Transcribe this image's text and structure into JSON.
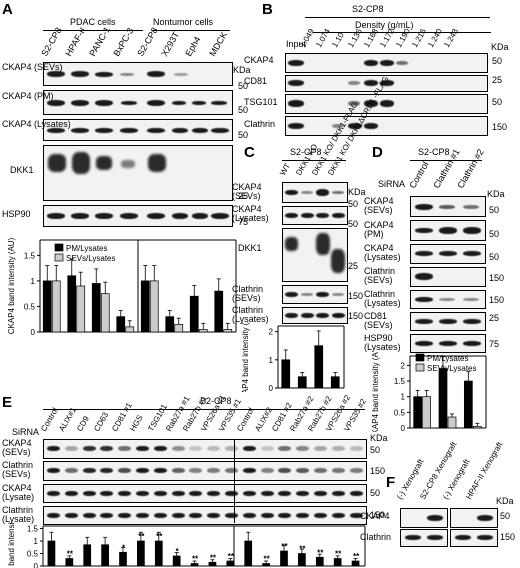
{
  "panels": {
    "A": "A",
    "B": "B",
    "C": "C",
    "D": "D",
    "E": "E",
    "F": "F"
  },
  "a": {
    "group_pdac": "PDAC cells",
    "group_nontumor": "Nontumor cells",
    "lanes": [
      "S2-CP8",
      "HPAF-II",
      "PANC-1",
      "BxPC-3",
      "S2-CP8",
      "X293T",
      "Eph4",
      "MDCK"
    ],
    "rows": [
      "CKAP4 (SEVs)",
      "CKAP4 (PM)",
      "CKAP4 (Lysates)",
      "DKK1",
      "HSP90"
    ],
    "kda": "KDa",
    "mw": [
      "50",
      "50",
      "50",
      "25",
      "75"
    ],
    "ylabel": "CKAP4 band intensity (AU)",
    "yticks": [
      "0",
      "0.5",
      "1",
      "1.5"
    ],
    "legend": [
      "PM/Lysates",
      "SEVs/Lysates"
    ]
  },
  "b": {
    "title": "S2-CP8",
    "density": "Density (g/mL)",
    "input": "Input",
    "lanes": [
      "1.049",
      "1.074",
      "1.10",
      "1.136",
      "1.168",
      "1.172",
      "1.190",
      "1.216",
      "1.240",
      "1.243"
    ],
    "rows": [
      "CKAP4",
      "CD81",
      "TSG101",
      "Clathrin"
    ],
    "kda": "KDa",
    "mw": [
      "50",
      "25",
      "50",
      "150"
    ]
  },
  "c": {
    "title": "S2-CP8",
    "lanes": [
      "WT",
      "DKK1 KO",
      "DKK1 KO/ DKK1-FLAG",
      "DKK1 KO/ DKK1ΔCRD1 -FLAG"
    ],
    "rows": [
      "CKAP4 (SEVs)",
      "CKAP4 (Lysates)",
      "DKK1",
      "Clathrin (SEVs)",
      "Clathrin (Lysates)"
    ],
    "kda": "KDa",
    "mw": [
      "50",
      "50",
      "25",
      "150",
      "150"
    ],
    "ylabel": "CKAP4 band intensity (AU)",
    "yticks": [
      "0",
      "1",
      "2"
    ]
  },
  "d": {
    "title": "S2-CP8",
    "sirna": "SiRNA",
    "lanes": [
      "Control",
      "Clathrin #1",
      "Clathrin #2"
    ],
    "rows": [
      "CKAP4 (SEVs)",
      "CKAP4 (PM)",
      "CKAP4 (Lysates)",
      "Clathrin (SEVs)",
      "Clathrin (Lysates)",
      "CD81 (SEVs)",
      "HSP90 (Lysates)"
    ],
    "kda": "KDa",
    "mw": [
      "50",
      "50",
      "50",
      "150",
      "150",
      "25",
      "75"
    ],
    "ylabel": "CKAP4 band intensity (AU)",
    "yticks": [
      "0",
      "0.5",
      "1",
      "1.5",
      "2"
    ],
    "legend": [
      "PM/Lysates",
      "SEVs/Lysates"
    ]
  },
  "e": {
    "title": "S2-CP8",
    "sirna": "SiRNA",
    "lanes": [
      "Control",
      "ALIX#1",
      "CD9",
      "CD63",
      "CD81 #1",
      "HGS",
      "TSG101",
      "Rab27a #1",
      "Rab27b #1",
      "VPS26a #1",
      "VPS35 #1",
      "Control",
      "ALIX#2",
      "CD81 #2",
      "Rab27a #2",
      "Rab27b #2",
      "VPS26a #2",
      "VPS35 #2"
    ],
    "rows": [
      "CKAP4 (SEVs)",
      "Clathrin (SEVs)",
      "CKAP4 (Lysate)",
      "Clathrin (Lysate)"
    ],
    "kda": "KDa",
    "mw": [
      "50",
      "150",
      "50",
      "150"
    ],
    "ylabel": "CKAP4 band intensity (AU)",
    "yticks": [
      "0",
      "0.5",
      "1",
      "1.5"
    ],
    "sig": [
      "**",
      "*",
      "*",
      "**",
      "**",
      "**",
      "**",
      "**",
      "**",
      "**",
      "**",
      "**",
      "**",
      "**"
    ]
  },
  "f": {
    "lanes": [
      "(-) Xenograft",
      "S2-CP8 Xenograft",
      "(-) Xenograft",
      "HPAF-II Xenograft"
    ],
    "rows": [
      "CKAP4",
      "Clathrin"
    ],
    "kda": "KDa",
    "mw": [
      "50",
      "150"
    ]
  },
  "chart_data": [
    {
      "type": "bar",
      "panel": "A",
      "categories": [
        "S2-CP8",
        "HPAF-II",
        "PANC-1",
        "BxPC-3",
        "S2-CP8",
        "X293T",
        "Eph4",
        "MDCK"
      ],
      "series": [
        {
          "name": "PM/Lysates",
          "values": [
            1.0,
            1.1,
            0.95,
            0.3,
            1.0,
            0.3,
            0.7,
            0.8
          ]
        },
        {
          "name": "SEVs/Lysates",
          "values": [
            1.0,
            0.9,
            0.75,
            0.1,
            1.0,
            0.15,
            0.05,
            0.05
          ]
        }
      ],
      "ylabel": "CKAP4 band intensity (AU)",
      "ylim": [
        0,
        1.8
      ]
    },
    {
      "type": "bar",
      "panel": "C",
      "categories": [
        "WT",
        "DKK1 KO",
        "DKK1 KO/ DKK1-FLAG",
        "DKK1 KO/ DKK1ΔCRD1 -FLAG"
      ],
      "values": [
        1.0,
        0.4,
        1.5,
        0.4
      ],
      "ylabel": "CKAP4 band intensity (AU)",
      "ylim": [
        0,
        2.2
      ]
    },
    {
      "type": "bar",
      "panel": "D",
      "categories": [
        "Control",
        "Clathrin #1",
        "Clathrin #2"
      ],
      "series": [
        {
          "name": "PM/Lysates",
          "values": [
            1.0,
            1.9,
            1.5
          ]
        },
        {
          "name": "SEVs/Lysates",
          "values": [
            1.0,
            0.35,
            0.05
          ]
        }
      ],
      "ylabel": "CKAP4 band intensity (AU)",
      "ylim": [
        0,
        2.3
      ]
    },
    {
      "type": "bar",
      "panel": "E",
      "categories": [
        "Control",
        "ALIX#1",
        "CD9",
        "CD63",
        "CD81 #1",
        "HGS",
        "TSG101",
        "Rab27a #1",
        "Rab27b #1",
        "VPS26a #1",
        "VPS35 #1",
        "Control",
        "ALIX#2",
        "CD81 #2",
        "Rab27a #2",
        "Rab27b #2",
        "VPS26a #2",
        "VPS35 #2"
      ],
      "values": [
        1.0,
        0.3,
        0.85,
        0.85,
        0.55,
        1.0,
        1.0,
        0.4,
        0.1,
        0.15,
        0.2,
        1.0,
        0.1,
        0.6,
        0.5,
        0.35,
        0.3,
        0.2
      ],
      "ylabel": "CKAP4 band intensity (AU)",
      "ylim": [
        0,
        1.6
      ]
    }
  ]
}
